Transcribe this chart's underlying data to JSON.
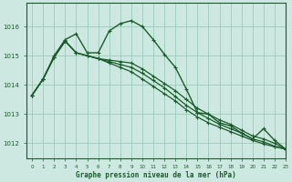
{
  "title": "Graphe pression niveau de la mer (hPa)",
  "background_color": "#cce8e0",
  "line_color": "#1a5c2a",
  "grid_color": "#99ccbb",
  "xlim": [
    -0.5,
    23
  ],
  "ylim": [
    1011.5,
    1016.8
  ],
  "yticks": [
    1012,
    1013,
    1014,
    1015,
    1016
  ],
  "xticks": [
    0,
    1,
    2,
    3,
    4,
    5,
    6,
    7,
    8,
    9,
    10,
    11,
    12,
    13,
    14,
    15,
    16,
    17,
    18,
    19,
    20,
    21,
    22,
    23
  ],
  "series": [
    {
      "y": [
        1013.65,
        1014.2,
        1015.0,
        1015.55,
        1015.75,
        1015.1,
        1015.1,
        1015.85,
        1016.1,
        1016.2,
        1016.0,
        1015.55,
        1015.05,
        1014.6,
        1013.85,
        1013.05,
        1013.0,
        1012.7,
        1012.6,
        1012.35,
        1012.15,
        1012.5,
        1012.1,
        1011.8
      ],
      "marker": true,
      "lw": 1.0
    },
    {
      "y": [
        1013.65,
        1014.2,
        1014.95,
        1015.5,
        1015.1,
        1015.0,
        1014.9,
        1014.85,
        1014.8,
        1014.75,
        1014.55,
        1014.3,
        1014.05,
        1013.8,
        1013.5,
        1013.2,
        1013.0,
        1012.8,
        1012.65,
        1012.45,
        1012.25,
        1012.15,
        1012.0,
        1011.8
      ],
      "marker": true,
      "lw": 0.9
    },
    {
      "y": [
        1013.65,
        1014.2,
        1014.95,
        1015.5,
        1015.1,
        1015.0,
        1014.9,
        1014.8,
        1014.7,
        1014.6,
        1014.4,
        1014.15,
        1013.9,
        1013.6,
        1013.3,
        1013.05,
        1012.85,
        1012.65,
        1012.5,
        1012.35,
        1012.15,
        1012.05,
        1011.9,
        1011.8
      ],
      "marker": true,
      "lw": 0.9
    },
    {
      "y": [
        1013.65,
        1014.2,
        1014.95,
        1015.5,
        1015.1,
        1015.0,
        1014.9,
        1014.75,
        1014.6,
        1014.45,
        1014.2,
        1013.95,
        1013.7,
        1013.45,
        1013.15,
        1012.9,
        1012.7,
        1012.55,
        1012.4,
        1012.25,
        1012.1,
        1011.98,
        1011.88,
        1011.8
      ],
      "marker": true,
      "lw": 0.9
    }
  ]
}
